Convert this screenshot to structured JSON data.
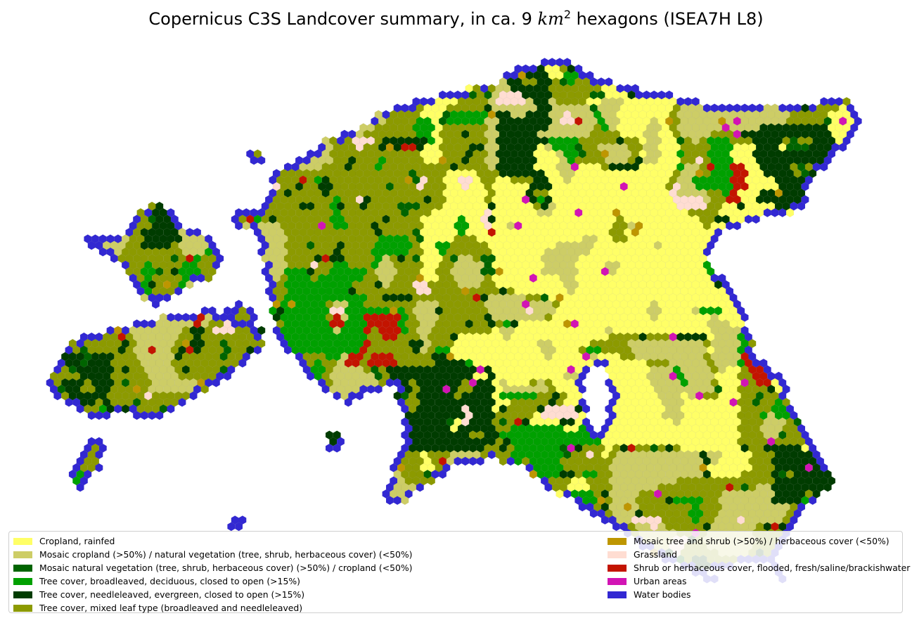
{
  "title": {
    "prefix": "Copernicus C3S Landcover summary, in ca. 9 ",
    "unit": "km",
    "exponent": "2",
    "suffix": " hexagons (ISEA7H L8)"
  },
  "map": {
    "classes": [
      {
        "key": "cropland",
        "color": "#ffff66"
      },
      {
        "key": "mosaic_crop",
        "color": "#cdcd66"
      },
      {
        "key": "mosaic_nat",
        "color": "#006400"
      },
      {
        "key": "broadleaved",
        "color": "#00a000"
      },
      {
        "key": "needleleaved",
        "color": "#003c00"
      },
      {
        "key": "mixed",
        "color": "#8c9a00"
      },
      {
        "key": "mosaic_tree",
        "color": "#be9600"
      },
      {
        "key": "grassland",
        "color": "#ffddd2"
      },
      {
        "key": "flooded",
        "color": "#c31400"
      },
      {
        "key": "urban",
        "color": "#d214b4"
      },
      {
        "key": "water",
        "color": "#3228d2"
      }
    ]
  },
  "legend": {
    "left": [
      {
        "label": "Cropland, rainfed",
        "color": "#ffff66"
      },
      {
        "label": "Mosaic cropland (>50%) / natural vegetation (tree, shrub, herbaceous cover) (<50%)",
        "color": "#cdcd66"
      },
      {
        "label": "Mosaic natural vegetation (tree, shrub, herbaceous cover) (>50%) / cropland (<50%)",
        "color": "#006400"
      },
      {
        "label": "Tree cover, broadleaved, deciduous, closed to open (>15%)",
        "color": "#00a000"
      },
      {
        "label": "Tree cover, needleleaved, evergreen, closed to open (>15%)",
        "color": "#003c00"
      },
      {
        "label": "Tree cover, mixed leaf type (broadleaved and needleleaved)",
        "color": "#8c9a00"
      }
    ],
    "right": [
      {
        "label": "Mosaic tree and shrub (>50%) / herbaceous cover (<50%)",
        "color": "#be9600"
      },
      {
        "label": "Grassland",
        "color": "#ffddd2"
      },
      {
        "label": "Shrub or herbaceous cover, flooded, fresh/saline/brackishwater",
        "color": "#c31400"
      },
      {
        "label": "Urban areas",
        "color": "#d214b4"
      },
      {
        "label": "Water bodies",
        "color": "#3228d2"
      }
    ]
  }
}
